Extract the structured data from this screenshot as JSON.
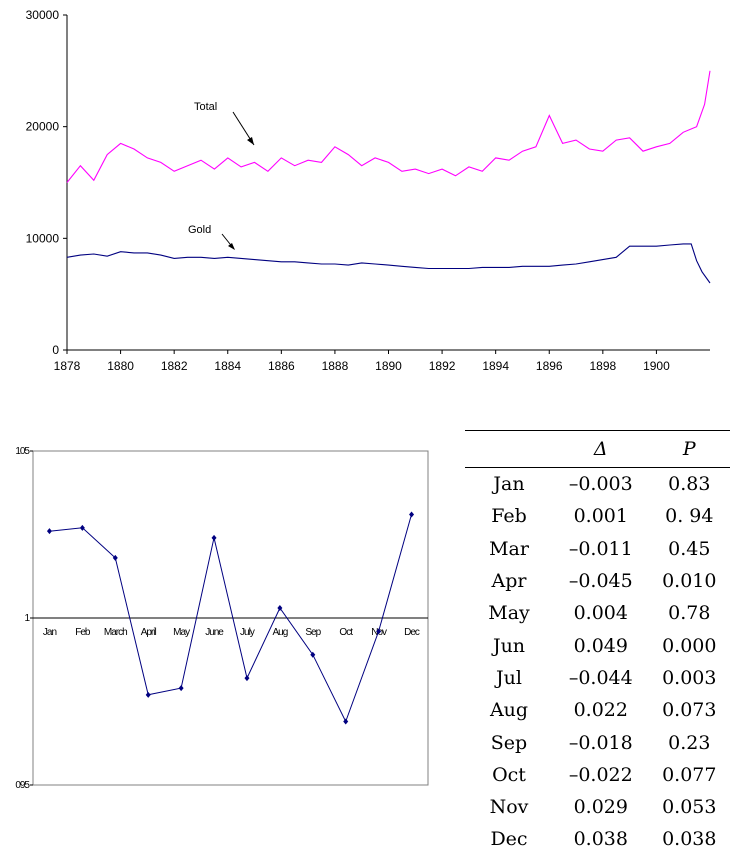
{
  "chart_data": [
    {
      "type": "line",
      "title": "",
      "xlabel": "",
      "ylabel": "",
      "xlim": [
        1878,
        1902
      ],
      "ylim": [
        0,
        30000
      ],
      "x_ticks": [
        "1878",
        "1880",
        "1882",
        "1884",
        "1886",
        "1888",
        "1890",
        "1892",
        "1894",
        "1896",
        "1898",
        "1900"
      ],
      "y_ticks": [
        "0",
        "10000",
        "20000",
        "30000"
      ],
      "grid": false,
      "series": [
        {
          "name": "Total",
          "color": "#ff00ff",
          "x": [
            1878.0,
            1878.5,
            1879.0,
            1879.5,
            1880.0,
            1880.5,
            1881.0,
            1881.5,
            1882.0,
            1882.5,
            1883.0,
            1883.5,
            1884.0,
            1884.5,
            1885.0,
            1885.5,
            1886.0,
            1886.5,
            1887.0,
            1887.5,
            1888.0,
            1888.5,
            1889.0,
            1889.5,
            1890.0,
            1890.5,
            1891.0,
            1891.5,
            1892.0,
            1892.5,
            1893.0,
            1893.5,
            1894.0,
            1894.5,
            1895.0,
            1895.5,
            1896.0,
            1896.5,
            1897.0,
            1897.5,
            1898.0,
            1898.5,
            1899.0,
            1899.5,
            1900.0,
            1900.5,
            1901.0,
            1901.5,
            1901.8,
            1902.0
          ],
          "y": [
            15000,
            16500,
            15200,
            17500,
            18500,
            18000,
            17200,
            16800,
            16000,
            16500,
            17000,
            16200,
            17200,
            16400,
            16800,
            16000,
            17200,
            16500,
            17000,
            16800,
            18200,
            17500,
            16500,
            17200,
            16800,
            16000,
            16200,
            15800,
            16200,
            15600,
            16400,
            16000,
            17200,
            17000,
            17800,
            18200,
            21000,
            18500,
            18800,
            18000,
            17800,
            18800,
            19000,
            17800,
            18200,
            18500,
            19500,
            20000,
            22000,
            25000
          ]
        },
        {
          "name": "Gold",
          "color": "#000080",
          "x": [
            1878.0,
            1878.5,
            1879.0,
            1879.5,
            1880.0,
            1880.5,
            1881.0,
            1881.5,
            1882.0,
            1882.5,
            1883.0,
            1883.5,
            1884.0,
            1884.5,
            1885.0,
            1885.5,
            1886.0,
            1886.5,
            1887.0,
            1887.5,
            1888.0,
            1888.5,
            1889.0,
            1889.5,
            1890.0,
            1890.5,
            1891.0,
            1891.5,
            1892.0,
            1892.5,
            1893.0,
            1893.5,
            1894.0,
            1894.5,
            1895.0,
            1895.5,
            1896.0,
            1896.5,
            1897.0,
            1897.5,
            1898.0,
            1898.5,
            1899.0,
            1899.5,
            1900.0,
            1900.5,
            1901.0,
            1901.3,
            1901.5,
            1901.7,
            1902.0
          ],
          "y": [
            8300,
            8500,
            8600,
            8400,
            8800,
            8700,
            8700,
            8500,
            8200,
            8300,
            8300,
            8200,
            8300,
            8200,
            8100,
            8000,
            7900,
            7900,
            7800,
            7700,
            7700,
            7600,
            7800,
            7700,
            7600,
            7500,
            7400,
            7300,
            7300,
            7300,
            7300,
            7400,
            7400,
            7400,
            7500,
            7500,
            7500,
            7600,
            7700,
            7900,
            8100,
            8300,
            9300,
            9300,
            9300,
            9400,
            9500,
            9500,
            8000,
            7000,
            6000
          ]
        }
      ],
      "annotations": [
        "Total",
        "Gold"
      ]
    },
    {
      "type": "line",
      "title": "",
      "xlabel": "",
      "ylabel": "",
      "ylim": [
        0.95,
        1.05
      ],
      "y_ticks": [
        "105",
        "1",
        "095"
      ],
      "categories": [
        "Jan",
        "Feb",
        "March",
        "April",
        "May",
        "June",
        "July",
        "Aug",
        "Sep",
        "Oct",
        "Nov",
        "Dec"
      ],
      "grid": false,
      "series": [
        {
          "color": "#000080",
          "values": [
            1.026,
            1.027,
            1.018,
            0.977,
            0.979,
            1.024,
            0.982,
            1.003,
            0.989,
            0.969,
            0.996,
            1.031
          ]
        }
      ]
    }
  ],
  "table": {
    "headers": [
      "",
      "Δ",
      "P"
    ],
    "rows": [
      [
        "Jan",
        "–0.003",
        "0.83"
      ],
      [
        "Feb",
        "0.001",
        "0. 94"
      ],
      [
        "Mar",
        "–0.011",
        "0.45"
      ],
      [
        "Apr",
        "–0.045",
        "0.010"
      ],
      [
        "May",
        "0.004",
        "0.78"
      ],
      [
        "Jun",
        "0.049",
        "0.000"
      ],
      [
        "Jul",
        "–0.044",
        "0.003"
      ],
      [
        "Aug",
        "0.022",
        "0.073"
      ],
      [
        "Sep",
        "–0.018",
        "0.23"
      ],
      [
        "Oct",
        "–0.022",
        "0.077"
      ],
      [
        "Nov",
        "0.029",
        "0.053"
      ],
      [
        "Dec",
        "0.038",
        "0.038"
      ]
    ]
  }
}
